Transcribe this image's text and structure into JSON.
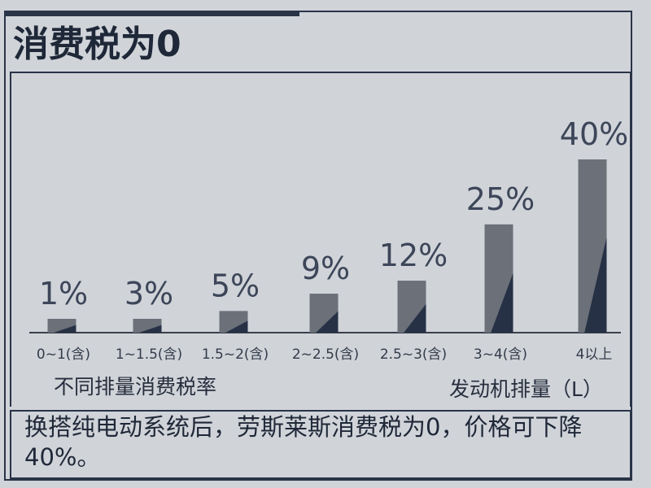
{
  "page": {
    "title": "消费税为0",
    "caption": "换搭纯电动系统后，劳斯莱斯消费税为0，价格可下降40%。"
  },
  "chart_data": {
    "type": "bar",
    "title": "",
    "categories": [
      "0~1(含)",
      "1~1.5(含)",
      "1.5~2(含)",
      "2~2.5(含)",
      "2.5~3(含)",
      "3~4(含)",
      "4以上"
    ],
    "values": [
      1,
      3,
      5,
      9,
      12,
      25,
      40
    ],
    "value_labels": [
      "1%",
      "3%",
      "5%",
      "9%",
      "12%",
      "25%",
      "40%"
    ],
    "xlabel": "发动机排量（L）",
    "ylabel": "不同排量消费税率",
    "ylim": [
      0,
      40
    ],
    "unit": "%",
    "grid": false,
    "colors": {
      "bar_light": "#6b7079",
      "bar_dark": "#263145",
      "axis": "#3a3f4a"
    }
  }
}
